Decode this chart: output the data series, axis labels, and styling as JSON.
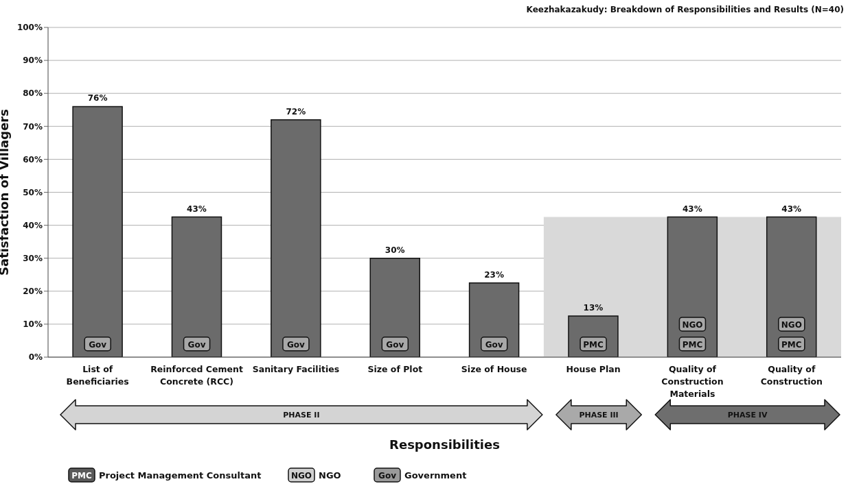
{
  "chart_data": {
    "type": "bar",
    "title": "Keezhakazakudy: Breakdown of Responsibilities and Results (N=40)",
    "xlabel": "Responsibilities",
    "ylabel": "Satisfaction of Villagers",
    "categories": [
      "List of Beneficiaries",
      "Reinforced Cement Concrete (RCC)",
      "Sanitary Facilities",
      "Size of Plot",
      "Size of House",
      "House Plan",
      "Quality of Construction Materials",
      "Quality of Construction"
    ],
    "values": [
      76,
      42.5,
      72,
      30,
      22.5,
      12.5,
      42.5,
      42.5
    ],
    "value_labels": [
      "76%",
      "43%",
      "72%",
      "30%",
      "23%",
      "13%",
      "43%",
      "43%"
    ],
    "color": "#6b6b6b",
    "ylim": [
      0,
      100
    ],
    "yticks": [
      {
        "value": 0,
        "label": "0%"
      },
      {
        "value": 10,
        "label": "10%"
      },
      {
        "value": 20,
        "label": "20%"
      },
      {
        "value": 30,
        "label": "30%"
      },
      {
        "value": 40,
        "label": "40%"
      },
      {
        "value": 50,
        "label": "50%"
      },
      {
        "value": 60,
        "label": "60%"
      },
      {
        "value": 70,
        "label": "70%"
      },
      {
        "value": 80,
        "label": "80%"
      },
      {
        "value": 90,
        "label": "90%"
      },
      {
        "value": 100,
        "label": "100%"
      }
    ],
    "grid": "y",
    "bands": [
      {
        "axis": "x",
        "from": "House Plan",
        "to": "Quality of Construction",
        "color": "#d9d9d9"
      }
    ],
    "annotations": [
      {
        "text": "Gov",
        "x": "List of Beneficiaries",
        "y": 4
      },
      {
        "text": "Gov",
        "x": "Reinforced Cement Concrete (RCC)",
        "y": 4
      },
      {
        "text": "Gov",
        "x": "Sanitary Facilities",
        "y": 4
      },
      {
        "text": "Gov",
        "x": "Size of Plot",
        "y": 4
      },
      {
        "text": "Gov",
        "x": "Size of House",
        "y": 4
      },
      {
        "text": "PMC",
        "x": "House Plan",
        "y": 4
      },
      {
        "text": "NGO",
        "x": "Quality of Construction Materials",
        "y": 10
      },
      {
        "text": "PMC",
        "x": "Quality of Construction Materials",
        "y": 4
      },
      {
        "text": "NGO",
        "x": "Quality of Construction",
        "y": 10
      },
      {
        "text": "PMC",
        "x": "Quality of Construction",
        "y": 4
      },
      "PHASE II",
      "PHASE III",
      "PHASE IV",
      "PMC",
      "Project Management Consultant",
      "NGO",
      "NGO",
      "Gov",
      "Government"
    ]
  }
}
